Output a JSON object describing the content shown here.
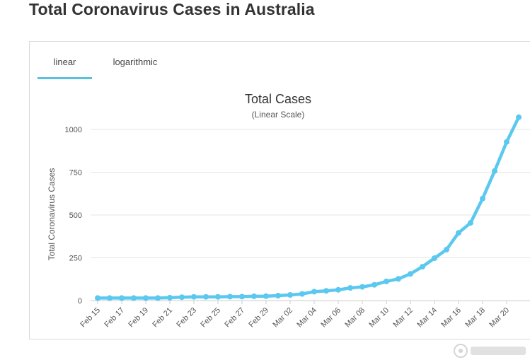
{
  "page": {
    "title": "Total Coronavirus Cases in Australia"
  },
  "tabs": [
    {
      "label": "linear",
      "active": true
    },
    {
      "label": "logarithmic",
      "active": false
    }
  ],
  "colors": {
    "series": "#5bc8ef",
    "grid": "#e6e6e6",
    "tab_underline": "#5bc0de"
  },
  "chart_data": {
    "type": "line",
    "title": "Total Cases",
    "subtitle": "(Linear Scale)",
    "xlabel": "",
    "ylabel": "Total Coronavirus Cases",
    "ylim": [
      0,
      1000
    ],
    "yticks": [
      0,
      250,
      500,
      750,
      1000
    ],
    "grid": true,
    "x": [
      "Feb 15",
      "Feb 16",
      "Feb 17",
      "Feb 18",
      "Feb 19",
      "Feb 20",
      "Feb 21",
      "Feb 22",
      "Feb 23",
      "Feb 24",
      "Feb 25",
      "Feb 26",
      "Feb 27",
      "Feb 28",
      "Feb 29",
      "Mar 01",
      "Mar 02",
      "Mar 03",
      "Mar 04",
      "Mar 05",
      "Mar 06",
      "Mar 07",
      "Mar 08",
      "Mar 09",
      "Mar 10",
      "Mar 11",
      "Mar 12",
      "Mar 13",
      "Mar 14",
      "Mar 15",
      "Mar 16",
      "Mar 17",
      "Mar 18",
      "Mar 19",
      "Mar 20",
      "Mar 21"
    ],
    "xtick_labels": [
      "Feb 15",
      "Feb 17",
      "Feb 19",
      "Feb 21",
      "Feb 23",
      "Feb 25",
      "Feb 27",
      "Feb 29",
      "Mar 02",
      "Mar 04",
      "Mar 06",
      "Mar 08",
      "Mar 10",
      "Mar 12",
      "Mar 14",
      "Mar 16",
      "Mar 18",
      "Mar 20"
    ],
    "series": [
      {
        "values": [
          15,
          15,
          15,
          15,
          15,
          15,
          17,
          20,
          22,
          22,
          22,
          23,
          23,
          25,
          26,
          29,
          33,
          39,
          52,
          57,
          63,
          74,
          80,
          92,
          112,
          127,
          156,
          198,
          248,
          298,
          396,
          454,
          596,
          757,
          927,
          1071
        ]
      }
    ]
  }
}
